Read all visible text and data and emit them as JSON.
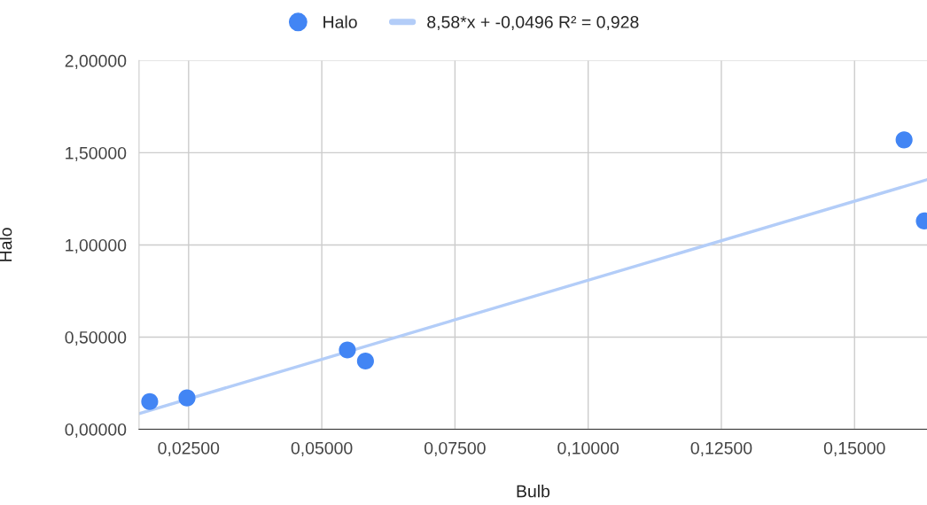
{
  "chart_data": {
    "type": "scatter",
    "xlabel": "Bulb",
    "ylabel": "Halo",
    "xlim": [
      0.0157,
      0.1636
    ],
    "ylim": [
      0,
      2
    ],
    "xticks": [
      {
        "value": 0.025,
        "label": "0,02500"
      },
      {
        "value": 0.05,
        "label": "0,05000"
      },
      {
        "value": 0.075,
        "label": "0,07500"
      },
      {
        "value": 0.1,
        "label": "0,10000"
      },
      {
        "value": 0.125,
        "label": "0,12500"
      },
      {
        "value": 0.15,
        "label": "0,15000"
      }
    ],
    "yticks": [
      {
        "value": 0,
        "label": "0,00000"
      },
      {
        "value": 0.5,
        "label": "0,50000"
      },
      {
        "value": 1,
        "label": "1,00000"
      },
      {
        "value": 1.5,
        "label": "1,50000"
      },
      {
        "value": 2,
        "label": "2,00000"
      }
    ],
    "grid": true,
    "legend": "top",
    "series": [
      {
        "name": "Halo",
        "color": "#4285f4",
        "marker": "circle",
        "x": [
          0.0177,
          0.0247,
          0.0548,
          0.0582,
          0.1593,
          0.1631
        ],
        "values": [
          0.15,
          0.17,
          0.43,
          0.37,
          1.57,
          1.13
        ]
      },
      {
        "name": "8,58*x + -0,0496 R² = 0,928",
        "type": "line",
        "color": "#b3cdf8",
        "marker": "none",
        "line_style": "solid",
        "x": [
          0.0157,
          0.1636
        ],
        "values": [
          0.085,
          1.354
        ]
      }
    ]
  }
}
